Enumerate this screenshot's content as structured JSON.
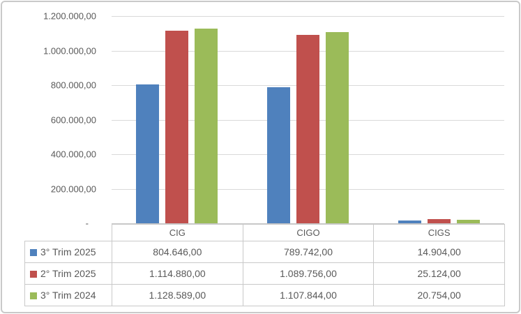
{
  "chart_data": {
    "type": "bar",
    "title": "",
    "categories": [
      "CIG",
      "CIGO",
      "CIGS"
    ],
    "series": [
      {
        "name": "3° Trim 2025",
        "color": "#4F81BD",
        "values": [
          804646.0,
          789742.0,
          14904.0
        ],
        "formatted": [
          "804.646,00",
          "789.742,00",
          "14.904,00"
        ]
      },
      {
        "name": "2° Trim 2025",
        "color": "#C0504D",
        "values": [
          1114880.0,
          1089756.0,
          25124.0
        ],
        "formatted": [
          "1.114.880,00",
          "1.089.756,00",
          "25.124,00"
        ]
      },
      {
        "name": "3° Trim 2024",
        "color": "#9BBB59",
        "values": [
          1128589.0,
          1107844.0,
          20754.0
        ],
        "formatted": [
          "1.128.589,00",
          "1.107.844,00",
          "20.754,00"
        ]
      }
    ],
    "y_axis": {
      "min": 0,
      "max": 1200000,
      "step": 200000,
      "tick_labels_bottom_up": [
        "-",
        "200.000,00",
        "400.000,00",
        "600.000,00",
        "800.000,00",
        "1.000.000,00",
        "1.200.000,00"
      ]
    },
    "grid": true,
    "legend_position": "data-table-left",
    "data_table_shown": true
  },
  "colors": {
    "gridline": "#D9D9D9",
    "axis_line": "#C6C6C6",
    "table_border": "#C9C9C9",
    "text": "#595959",
    "outer_border": "#C9C9C9",
    "background": "#FFFFFF"
  }
}
